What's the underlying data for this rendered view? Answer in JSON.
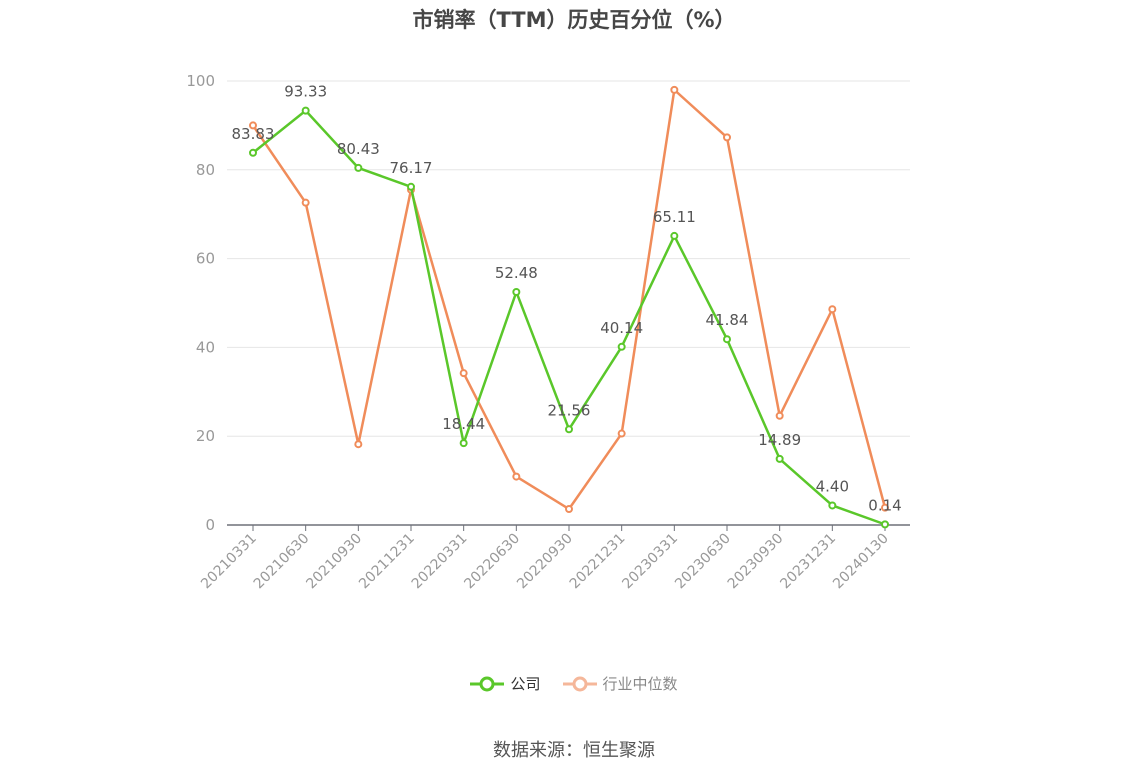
{
  "chart_data": {
    "type": "line",
    "title": "市销率（TTM）历史百分位（%）",
    "categories": [
      "20210331",
      "20210630",
      "20210930",
      "20211231",
      "20220331",
      "20220630",
      "20220930",
      "20221231",
      "20230331",
      "20230630",
      "20230930",
      "20231231",
      "20240130"
    ],
    "ylim": [
      0,
      100
    ],
    "yticks": [
      0,
      20,
      40,
      60,
      80,
      100
    ],
    "grid": true,
    "legend_position": "bottom",
    "series": [
      {
        "name": "公司",
        "color": "#5ac72a",
        "show_labels": true,
        "values": [
          83.83,
          93.33,
          80.43,
          76.17,
          18.44,
          52.48,
          21.56,
          40.14,
          65.11,
          41.84,
          14.89,
          4.4,
          0.14
        ],
        "labels": [
          "83.83",
          "93.33",
          "80.43",
          "76.17",
          "18.44",
          "52.48",
          "21.56",
          "40.14",
          "65.11",
          "41.84",
          "14.89",
          "4.40",
          "0.14"
        ]
      },
      {
        "name": "行业中位数",
        "color": "#f08c5a",
        "show_labels": false,
        "values": [
          90.0,
          72.6,
          18.2,
          75.5,
          34.2,
          10.9,
          3.6,
          20.6,
          98.0,
          87.3,
          24.6,
          48.6,
          3.9
        ]
      }
    ]
  },
  "legend": {
    "company": "公司",
    "industry": "行业中位数"
  },
  "source": "数据来源：恒生聚源"
}
